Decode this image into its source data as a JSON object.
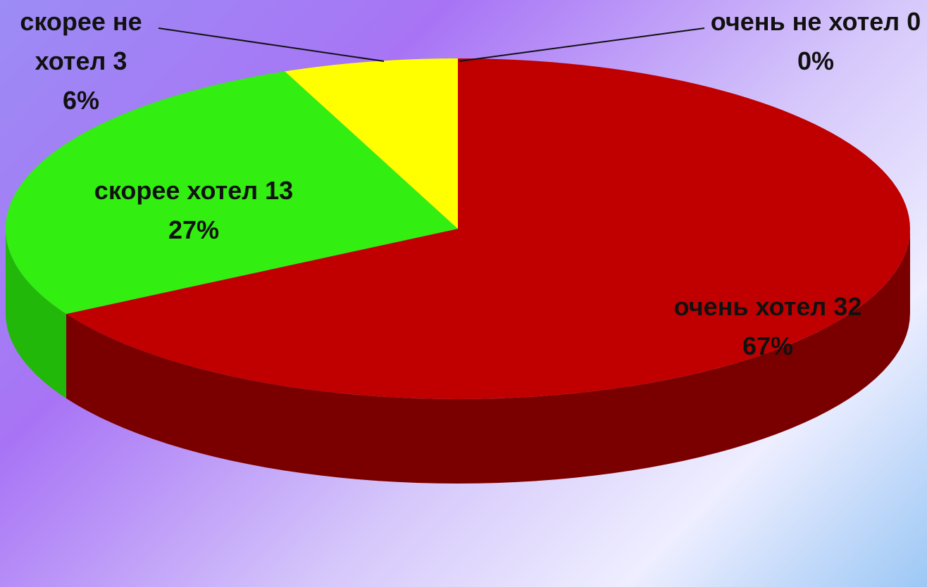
{
  "chart_data": {
    "type": "pie3d",
    "categories": [
      "очень хотел",
      "скорее хотел",
      "скорее не хотел",
      "очень не хотел"
    ],
    "values": [
      32,
      13,
      3,
      0
    ],
    "percent_labels": [
      "67%",
      "27%",
      "6%",
      "0%"
    ],
    "colors": [
      "#c00000",
      "#33ee11",
      "#ffff00",
      "#7030a0"
    ],
    "side_colors": [
      "#7a0000",
      "#22b80a",
      "#c8c800",
      "#4a1f6b"
    ]
  }
}
